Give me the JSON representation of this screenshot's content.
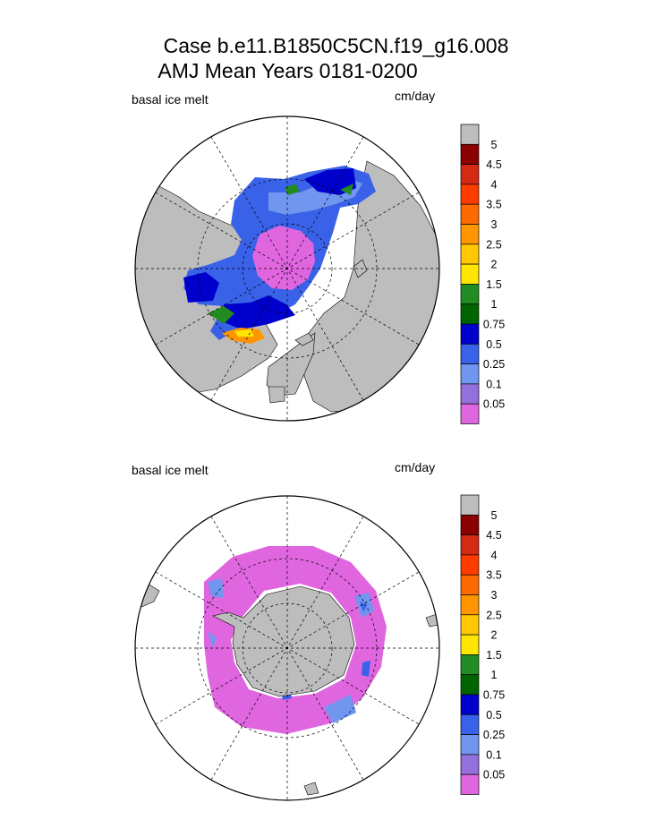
{
  "header": {
    "title_line1": "Case b.e11.B1850C5CN.f19_g16.008",
    "title_line2": "AMJ Mean    Years 0181-0200"
  },
  "chart_data": [
    {
      "type": "map",
      "projection": "north polar stereographic",
      "left_label": "basal ice melt",
      "units": "cm/day",
      "colorbar": {
        "levels": [
          "5",
          "4.5",
          "4",
          "3.5",
          "3",
          "2.5",
          "2",
          "1.5",
          "1",
          "0.75",
          "0.5",
          "0.25",
          "0.1",
          "0.05"
        ],
        "colors": [
          "#bdbdbd",
          "#8b0000",
          "#d42a14",
          "#ff3c00",
          "#ff6a00",
          "#ff9600",
          "#ffc800",
          "#ffe600",
          "#228b22",
          "#006400",
          "#0000cd",
          "#3a62e8",
          "#7096f0",
          "#9370db",
          "#e066e0"
        ]
      }
    },
    {
      "type": "map",
      "projection": "south polar stereographic",
      "left_label": "basal ice melt",
      "units": "cm/day",
      "colorbar": {
        "levels": [
          "5",
          "4.5",
          "4",
          "3.5",
          "3",
          "2.5",
          "2",
          "1.5",
          "1",
          "0.75",
          "0.5",
          "0.25",
          "0.1",
          "0.05"
        ],
        "colors": [
          "#bdbdbd",
          "#8b0000",
          "#d42a14",
          "#ff3c00",
          "#ff6a00",
          "#ff9600",
          "#ffc800",
          "#ffe600",
          "#228b22",
          "#006400",
          "#0000cd",
          "#3a62e8",
          "#7096f0",
          "#9370db",
          "#e066e0"
        ]
      }
    }
  ]
}
